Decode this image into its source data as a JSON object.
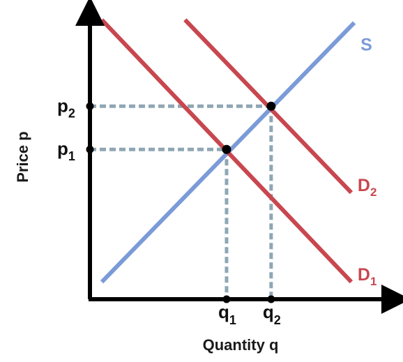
{
  "chart_data": {
    "type": "line",
    "title": "",
    "xlabel": "Quantity q",
    "ylabel": "Price p",
    "xlim": [
      0,
      10
    ],
    "ylim": [
      0,
      10
    ],
    "grid": false,
    "series": [
      {
        "name": "S",
        "name_main": "S",
        "name_sub": "",
        "color": "#7b9bd8",
        "x": [
          0.4,
          8.9
        ],
        "y": [
          0.6,
          9.6
        ]
      },
      {
        "name": "D1",
        "name_main": "D",
        "name_sub": "1",
        "color": "#c8474f",
        "x": [
          0.4,
          8.8
        ],
        "y": [
          9.7,
          0.6
        ]
      },
      {
        "name": "D2",
        "name_main": "D",
        "name_sub": "2",
        "color": "#c8474f",
        "x": [
          3.2,
          8.8
        ],
        "y": [
          9.7,
          3.7
        ]
      }
    ],
    "equilibria": [
      {
        "x": 4.6,
        "y": 5.2,
        "x_tick": {
          "main": "q",
          "sub": "1"
        },
        "y_tick": {
          "main": "p",
          "sub": "1"
        }
      },
      {
        "x": 6.1,
        "y": 6.7,
        "x_tick": {
          "main": "q",
          "sub": "2"
        },
        "y_tick": {
          "main": "p",
          "sub": "2"
        }
      }
    ],
    "guide_color": "#8fa6b4"
  }
}
